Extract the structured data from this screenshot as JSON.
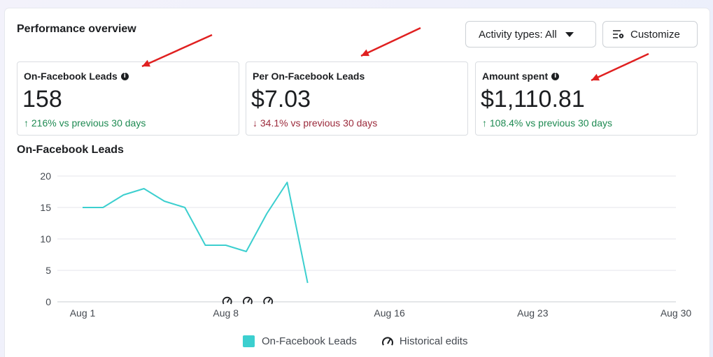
{
  "header": {
    "title": "Performance overview",
    "activity_button": "Activity types: All",
    "customize_button": "Customize"
  },
  "cards": [
    {
      "label": "On-Facebook Leads",
      "value": "158",
      "arrow": "↑",
      "delta": "216% vs previous 30 days",
      "trend": "up",
      "info": true
    },
    {
      "label": "Per On-Facebook Leads",
      "value": "$7.03",
      "arrow": "↓",
      "delta": "34.1% vs previous 30 days",
      "trend": "down",
      "info": false
    },
    {
      "label": "Amount spent",
      "value": "$1,110.81",
      "arrow": "↑",
      "delta": "108.4% vs previous 30 days",
      "trend": "up",
      "info": true
    }
  ],
  "chart_title": "On-Facebook Leads",
  "chart_data": {
    "type": "line",
    "x_ticks": [
      "Aug 1",
      "Aug 8",
      "Aug 16",
      "Aug 23",
      "Aug 30"
    ],
    "ylim": [
      0,
      20
    ],
    "y_ticks": [
      0,
      5,
      10,
      15,
      20
    ],
    "grid": true,
    "series": [
      {
        "name": "On-Facebook Leads",
        "color": "#3ccfcf",
        "x": [
          "Aug 1",
          "Aug 2",
          "Aug 3",
          "Aug 4",
          "Aug 5",
          "Aug 6",
          "Aug 7",
          "Aug 8",
          "Aug 9",
          "Aug 10",
          "Aug 11",
          "Aug 12"
        ],
        "values": [
          15,
          15,
          17,
          18,
          16,
          15,
          9,
          9,
          8,
          14,
          19,
          3
        ]
      }
    ],
    "historical_edits": [
      "Aug 8",
      "Aug 9",
      "Aug 10"
    ],
    "legend": [
      "On-Facebook Leads",
      "Historical edits"
    ],
    "legend_position": "bottom"
  },
  "annotations": {
    "arrow_color": "#e02020"
  }
}
